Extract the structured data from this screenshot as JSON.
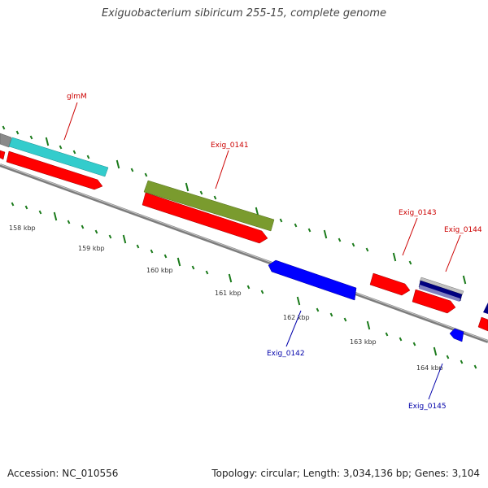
{
  "title": "Exiguobacterium sibiricum 255-15, complete genome",
  "accession": "Accession: NC_010556",
  "topology": "Topology: circular; Length: 3,034,136 bp; Genes: 3,104",
  "colors": {
    "backbone": "#8f8f8f",
    "forward_cds": "#ff0000",
    "reverse_cds": "#0000ff",
    "rna": "#7a9b2e",
    "cyan": "#33cccc",
    "navy": "#000080",
    "ticks": "#1a7a1a",
    "forward_label": "#cc0000",
    "reverse_label": "#0000aa"
  },
  "kbp_ticks": [
    "158 kbp",
    "159 kbp",
    "160 kbp",
    "161 kbp",
    "162 kbp",
    "163 kbp",
    "164 kbp"
  ],
  "gene_labels": {
    "glmM": "glmM",
    "exig0141": "Exig_0141",
    "exig0142": "Exig_0142",
    "exig0143": "Exig_0143",
    "exig0144": "Exig_0144",
    "exig0145": "Exig_0145"
  }
}
